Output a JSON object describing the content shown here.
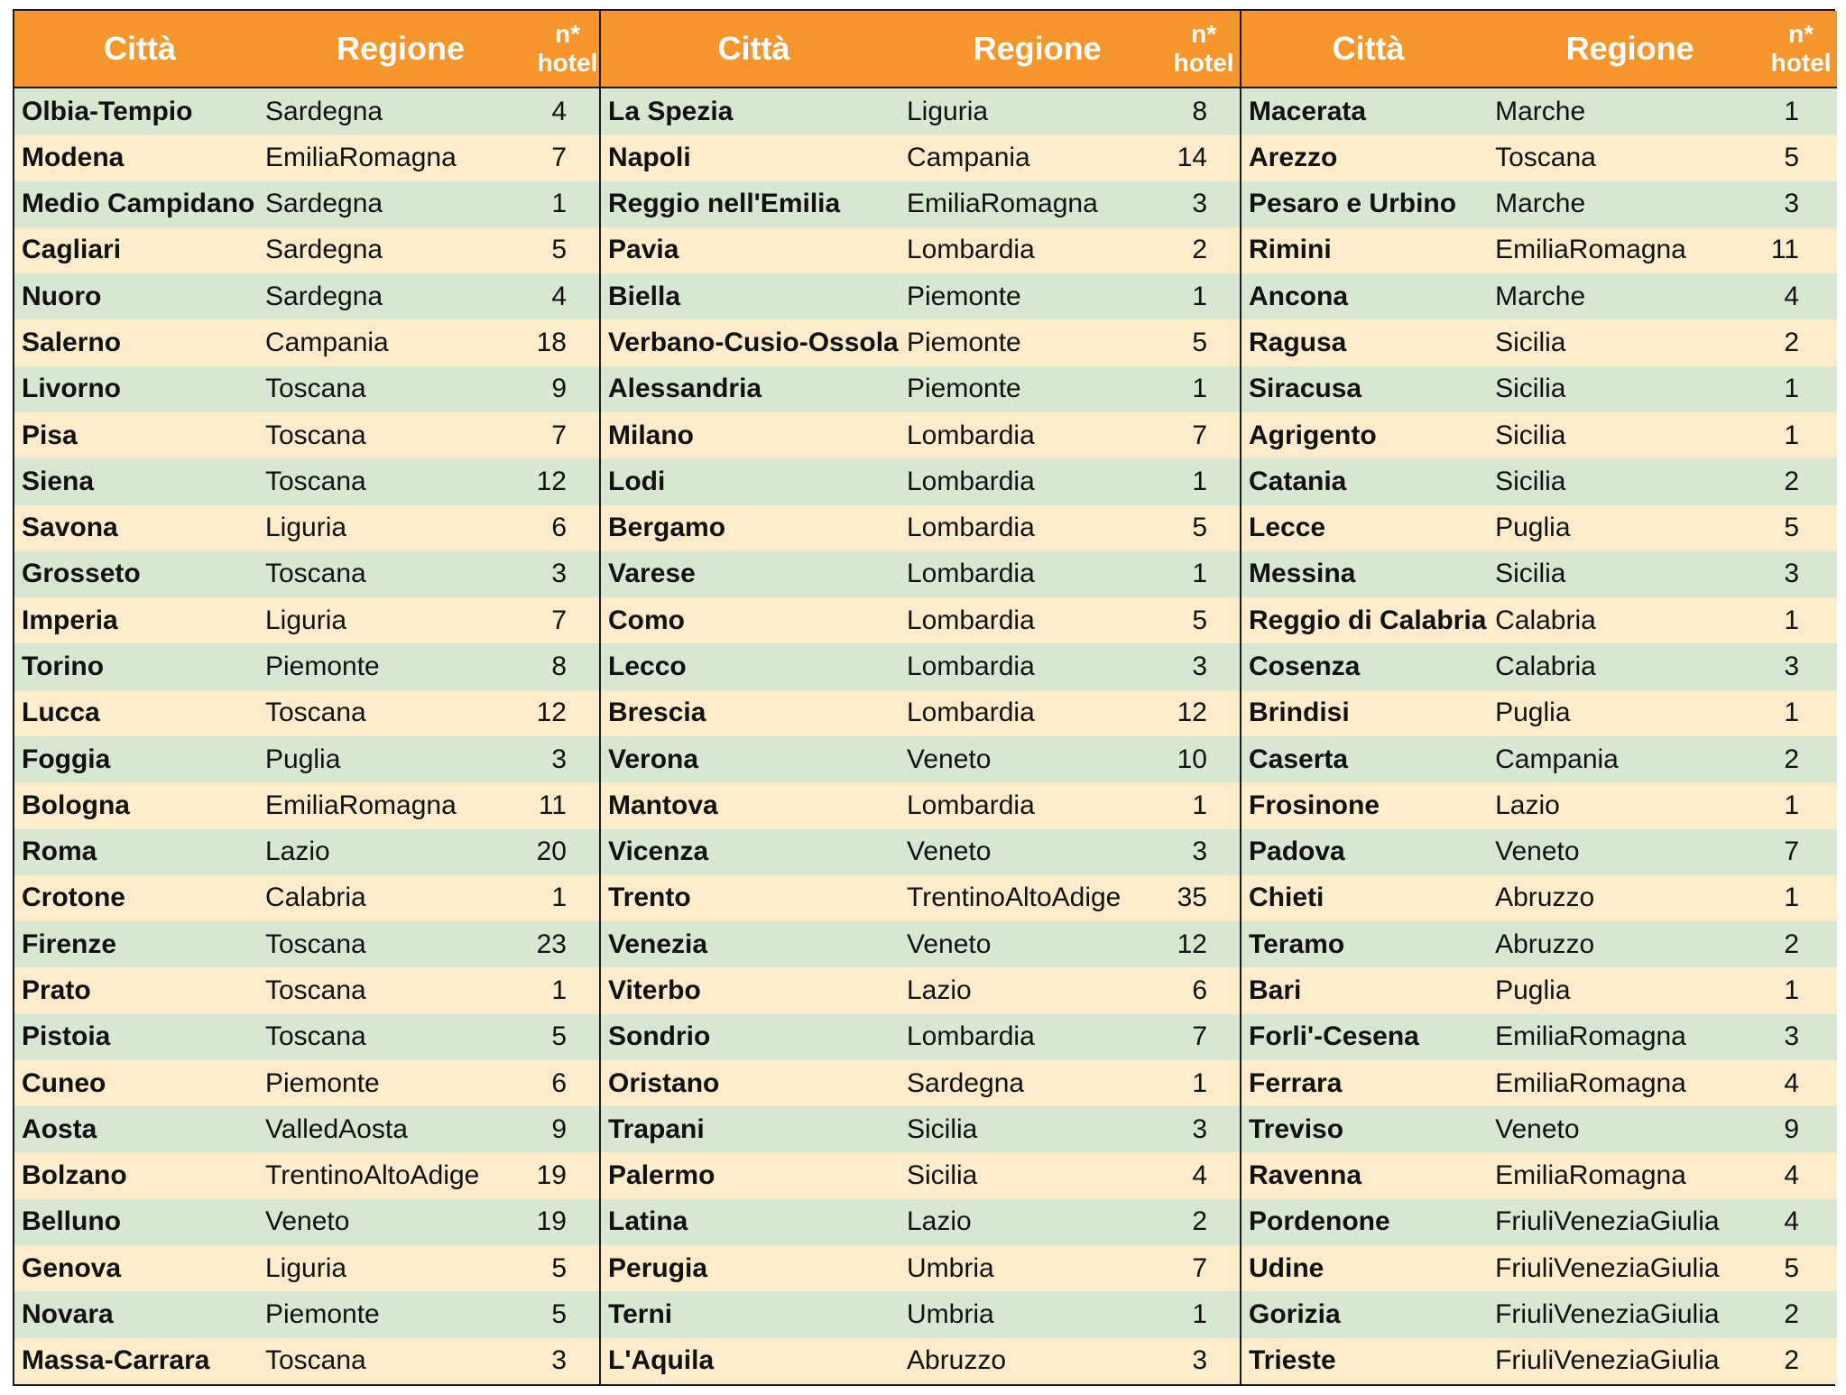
{
  "headers": {
    "citta": "Città",
    "regione": "Regione",
    "hotel_line1": "n*",
    "hotel_line2": "hotel"
  },
  "blocks": [
    {
      "rows": [
        {
          "citta": "Olbia-Tempio",
          "regione": "Sardegna",
          "hotel": "4"
        },
        {
          "citta": "Modena",
          "regione": "EmiliaRomagna",
          "hotel": "7"
        },
        {
          "citta": "Medio Campidano",
          "regione": "Sardegna",
          "hotel": "1"
        },
        {
          "citta": "Cagliari",
          "regione": "Sardegna",
          "hotel": "5"
        },
        {
          "citta": "Nuoro",
          "regione": "Sardegna",
          "hotel": "4"
        },
        {
          "citta": "Salerno",
          "regione": "Campania",
          "hotel": "18"
        },
        {
          "citta": "Livorno",
          "regione": "Toscana",
          "hotel": "9"
        },
        {
          "citta": "Pisa",
          "regione": "Toscana",
          "hotel": "7"
        },
        {
          "citta": "Siena",
          "regione": "Toscana",
          "hotel": "12"
        },
        {
          "citta": "Savona",
          "regione": "Liguria",
          "hotel": "6"
        },
        {
          "citta": "Grosseto",
          "regione": "Toscana",
          "hotel": "3"
        },
        {
          "citta": "Imperia",
          "regione": "Liguria",
          "hotel": "7"
        },
        {
          "citta": "Torino",
          "regione": "Piemonte",
          "hotel": "8"
        },
        {
          "citta": "Lucca",
          "regione": "Toscana",
          "hotel": "12"
        },
        {
          "citta": "Foggia",
          "regione": "Puglia",
          "hotel": "3"
        },
        {
          "citta": "Bologna",
          "regione": "EmiliaRomagna",
          "hotel": "11"
        },
        {
          "citta": "Roma",
          "regione": "Lazio",
          "hotel": "20"
        },
        {
          "citta": "Crotone",
          "regione": "Calabria",
          "hotel": "1"
        },
        {
          "citta": "Firenze",
          "regione": "Toscana",
          "hotel": "23"
        },
        {
          "citta": "Prato",
          "regione": "Toscana",
          "hotel": "1"
        },
        {
          "citta": "Pistoia",
          "regione": "Toscana",
          "hotel": "5"
        },
        {
          "citta": "Cuneo",
          "regione": "Piemonte",
          "hotel": "6"
        },
        {
          "citta": "Aosta",
          "regione": "ValledAosta",
          "hotel": "9"
        },
        {
          "citta": "Bolzano",
          "regione": "TrentinoAltoAdige",
          "hotel": "19"
        },
        {
          "citta": "Belluno",
          "regione": "Veneto",
          "hotel": "19"
        },
        {
          "citta": "Genova",
          "regione": "Liguria",
          "hotel": "5"
        },
        {
          "citta": "Novara",
          "regione": "Piemonte",
          "hotel": "5"
        },
        {
          "citta": "Massa-Carrara",
          "regione": "Toscana",
          "hotel": "3"
        }
      ]
    },
    {
      "rows": [
        {
          "citta": "La Spezia",
          "regione": "Liguria",
          "hotel": "8"
        },
        {
          "citta": "Napoli",
          "regione": "Campania",
          "hotel": "14"
        },
        {
          "citta": "Reggio nell'Emilia",
          "regione": "EmiliaRomagna",
          "hotel": "3"
        },
        {
          "citta": "Pavia",
          "regione": "Lombardia",
          "hotel": "2"
        },
        {
          "citta": "Biella",
          "regione": "Piemonte",
          "hotel": "1"
        },
        {
          "citta": "Verbano-Cusio-Ossola",
          "regione": "Piemonte",
          "hotel": "5"
        },
        {
          "citta": "Alessandria",
          "regione": "Piemonte",
          "hotel": "1"
        },
        {
          "citta": "Milano",
          "regione": "Lombardia",
          "hotel": "7"
        },
        {
          "citta": "Lodi",
          "regione": "Lombardia",
          "hotel": "1"
        },
        {
          "citta": "Bergamo",
          "regione": "Lombardia",
          "hotel": "5"
        },
        {
          "citta": "Varese",
          "regione": "Lombardia",
          "hotel": "1"
        },
        {
          "citta": "Como",
          "regione": "Lombardia",
          "hotel": "5"
        },
        {
          "citta": "Lecco",
          "regione": "Lombardia",
          "hotel": "3"
        },
        {
          "citta": "Brescia",
          "regione": "Lombardia",
          "hotel": "12"
        },
        {
          "citta": "Verona",
          "regione": "Veneto",
          "hotel": "10"
        },
        {
          "citta": "Mantova",
          "regione": "Lombardia",
          "hotel": "1"
        },
        {
          "citta": "Vicenza",
          "regione": "Veneto",
          "hotel": "3"
        },
        {
          "citta": "Trento",
          "regione": "TrentinoAltoAdige",
          "hotel": "35"
        },
        {
          "citta": "Venezia",
          "regione": "Veneto",
          "hotel": "12"
        },
        {
          "citta": "Viterbo",
          "regione": "Lazio",
          "hotel": "6"
        },
        {
          "citta": "Sondrio",
          "regione": "Lombardia",
          "hotel": "7"
        },
        {
          "citta": "Oristano",
          "regione": "Sardegna",
          "hotel": "1"
        },
        {
          "citta": "Trapani",
          "regione": "Sicilia",
          "hotel": "3"
        },
        {
          "citta": "Palermo",
          "regione": "Sicilia",
          "hotel": "4"
        },
        {
          "citta": "Latina",
          "regione": "Lazio",
          "hotel": "2"
        },
        {
          "citta": "Perugia",
          "regione": "Umbria",
          "hotel": "7"
        },
        {
          "citta": "Terni",
          "regione": "Umbria",
          "hotel": "1"
        },
        {
          "citta": "L'Aquila",
          "regione": "Abruzzo",
          "hotel": "3"
        }
      ]
    },
    {
      "rows": [
        {
          "citta": "Macerata",
          "regione": "Marche",
          "hotel": "1"
        },
        {
          "citta": "Arezzo",
          "regione": "Toscana",
          "hotel": "5"
        },
        {
          "citta": "Pesaro e Urbino",
          "regione": "Marche",
          "hotel": "3"
        },
        {
          "citta": "Rimini",
          "regione": "EmiliaRomagna",
          "hotel": "11"
        },
        {
          "citta": "Ancona",
          "regione": "Marche",
          "hotel": "4"
        },
        {
          "citta": "Ragusa",
          "regione": "Sicilia",
          "hotel": "2"
        },
        {
          "citta": "Siracusa",
          "regione": "Sicilia",
          "hotel": "1"
        },
        {
          "citta": "Agrigento",
          "regione": "Sicilia",
          "hotel": "1"
        },
        {
          "citta": "Catania",
          "regione": "Sicilia",
          "hotel": "2"
        },
        {
          "citta": "Lecce",
          "regione": "Puglia",
          "hotel": "5"
        },
        {
          "citta": "Messina",
          "regione": "Sicilia",
          "hotel": "3"
        },
        {
          "citta": "Reggio di Calabria",
          "regione": "Calabria",
          "hotel": "1"
        },
        {
          "citta": "Cosenza",
          "regione": "Calabria",
          "hotel": "3"
        },
        {
          "citta": "Brindisi",
          "regione": "Puglia",
          "hotel": "1"
        },
        {
          "citta": "Caserta",
          "regione": "Campania",
          "hotel": "2"
        },
        {
          "citta": "Frosinone",
          "regione": "Lazio",
          "hotel": "1"
        },
        {
          "citta": "Padova",
          "regione": "Veneto",
          "hotel": "7"
        },
        {
          "citta": "Chieti",
          "regione": "Abruzzo",
          "hotel": "1"
        },
        {
          "citta": "Teramo",
          "regione": "Abruzzo",
          "hotel": "2"
        },
        {
          "citta": "Bari",
          "regione": "Puglia",
          "hotel": "1"
        },
        {
          "citta": "Forli'-Cesena",
          "regione": "EmiliaRomagna",
          "hotel": "3"
        },
        {
          "citta": "Ferrara",
          "regione": "EmiliaRomagna",
          "hotel": "4"
        },
        {
          "citta": "Treviso",
          "regione": "Veneto",
          "hotel": "9"
        },
        {
          "citta": "Ravenna",
          "regione": "EmiliaRomagna",
          "hotel": "4"
        },
        {
          "citta": "Pordenone",
          "regione": "FriuliVeneziaGiulia",
          "hotel": "4"
        },
        {
          "citta": "Udine",
          "regione": "FriuliVeneziaGiulia",
          "hotel": "5"
        },
        {
          "citta": "Gorizia",
          "regione": "FriuliVeneziaGiulia",
          "hotel": "2"
        },
        {
          "citta": "Trieste",
          "regione": "FriuliVeneziaGiulia",
          "hotel": "2"
        }
      ]
    }
  ],
  "colors": {
    "header_bg": "#f7962c",
    "row_odd": "#d8e7d2",
    "row_even": "#fdeccb",
    "border": "#1a1a1a"
  }
}
